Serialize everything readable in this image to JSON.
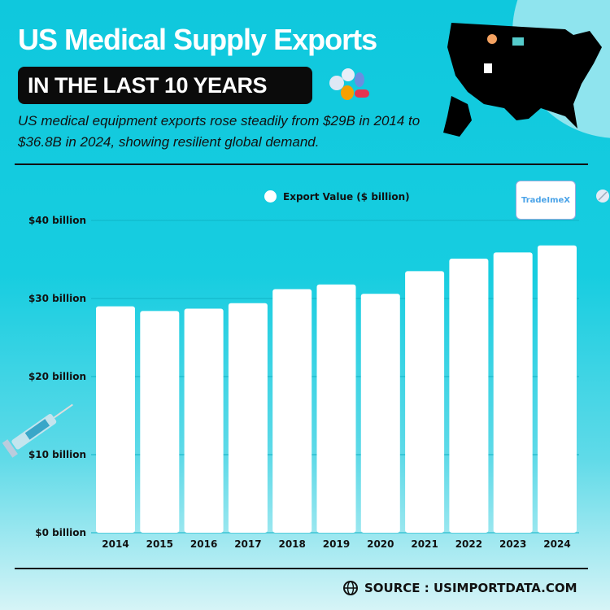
{
  "header": {
    "title": "US Medical Supply Exports",
    "badge": "IN THE LAST 10 YEARS",
    "subtitle": "US medical equipment exports rose steadily from $29B in 2014 to $36.8B in 2024, showing resilient global demand."
  },
  "logo": {
    "text": "TradeImeX"
  },
  "footer": {
    "source": "SOURCE : USIMPORTDATA.COM",
    "icon": "globe-icon"
  },
  "colors": {
    "background": "#12c9dc",
    "bar": "#ffffff",
    "title": "#ffffff"
  },
  "chart_data": {
    "type": "bar",
    "title": "",
    "xlabel": "",
    "ylabel": "",
    "categories": [
      "2014",
      "2015",
      "2016",
      "2017",
      "2018",
      "2019",
      "2020",
      "2021",
      "2022",
      "2023",
      "2024"
    ],
    "series": [
      {
        "name": "Export Value ($ billion)",
        "values": [
          29.0,
          28.4,
          28.7,
          29.4,
          31.2,
          31.8,
          30.6,
          33.5,
          35.1,
          35.9,
          36.8
        ]
      }
    ],
    "ylim": [
      0,
      40
    ],
    "yticks": [
      0,
      10,
      20,
      30,
      40
    ],
    "ytick_labels": [
      "$0 billion",
      "$10 billion",
      "$20 billion",
      "$30 billion",
      "$40 billion"
    ],
    "grid": true,
    "legend": "top"
  }
}
